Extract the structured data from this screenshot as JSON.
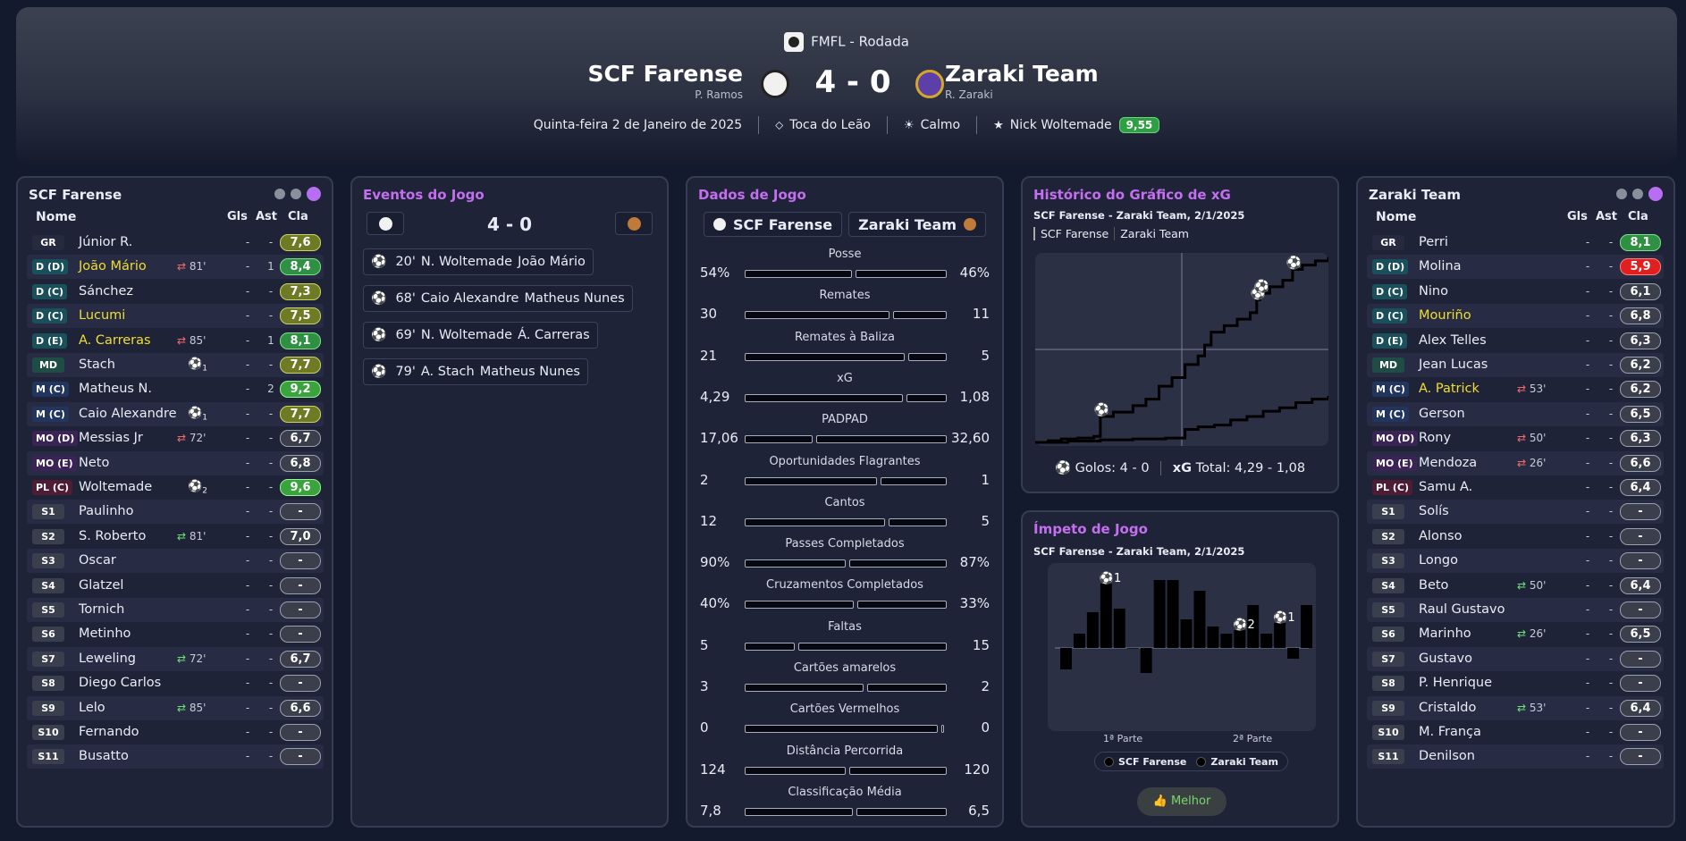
{
  "header": {
    "competition": "FMFL - Rodada",
    "home_team": "SCF Farense",
    "home_coach": "P. Ramos",
    "away_team": "Zaraki Team",
    "away_coach": "R. Zaraki",
    "score": "4 - 0",
    "date": "Quinta-feira 2 de Janeiro de 2025",
    "stadium": "Toca do Leão",
    "weather": "Calmo",
    "motm_name": "Nick Woltemade",
    "motm_rating": "9,55"
  },
  "colors": {
    "accent": "#c46ef0",
    "home_badge": "#f1f1f1",
    "away_badge": "#5d3fa8"
  },
  "left_panel": {
    "title": "SCF Farense",
    "col_name": "Nome",
    "col_gls": "Gls",
    "col_ast": "Ast",
    "col_cla": "Cla",
    "players": [
      {
        "pos": "GR",
        "type": "gr",
        "name": "Júnior R.",
        "sub": "",
        "gls": "-",
        "ast": "-",
        "rating": "7,6",
        "rclass": "r-olive"
      },
      {
        "pos": "D (D)",
        "type": "d",
        "name": "João Mário",
        "hl": true,
        "sub": "81'",
        "subdir": "out",
        "gls": "-",
        "ast": "1",
        "rating": "8,4",
        "rclass": "r-green"
      },
      {
        "pos": "D (C)",
        "type": "d",
        "name": "Sánchez",
        "sub": "",
        "gls": "-",
        "ast": "-",
        "rating": "7,3",
        "rclass": "r-olive"
      },
      {
        "pos": "D (C)",
        "type": "d",
        "name": "Lucumi",
        "hl": true,
        "sub": "",
        "gls": "-",
        "ast": "-",
        "rating": "7,5",
        "rclass": "r-olive"
      },
      {
        "pos": "D (E)",
        "type": "d",
        "name": "A. Carreras",
        "hl": true,
        "sub": "85'",
        "subdir": "out",
        "gls": "-",
        "ast": "1",
        "rating": "8,1",
        "rclass": "r-green"
      },
      {
        "pos": "MD",
        "type": "md",
        "name": "Stach",
        "sub": "",
        "goals_icon": "1",
        "gls": "-",
        "ast": "-",
        "rating": "7,7",
        "rclass": "r-olive"
      },
      {
        "pos": "M (C)",
        "type": "m",
        "name": "Matheus N.",
        "sub": "",
        "gls": "-",
        "ast": "2",
        "rating": "9,2",
        "rclass": "r-bright"
      },
      {
        "pos": "M (C)",
        "type": "m",
        "name": "Caio Alexandre",
        "sub": "",
        "goals_icon": "1",
        "gls": "-",
        "ast": "-",
        "rating": "7,7",
        "rclass": "r-olive"
      },
      {
        "pos": "MO (D)",
        "type": "mo",
        "name": "Messias Jr",
        "sub": "72'",
        "subdir": "out",
        "gls": "-",
        "ast": "-",
        "rating": "6,7",
        "rclass": ""
      },
      {
        "pos": "MO (E)",
        "type": "mo",
        "name": "Neto",
        "sub": "",
        "gls": "-",
        "ast": "-",
        "rating": "6,8",
        "rclass": ""
      },
      {
        "pos": "PL (C)",
        "type": "pl",
        "name": "Woltemade",
        "sub": "",
        "goals_icon": "2",
        "gls": "-",
        "ast": "-",
        "rating": "9,6",
        "rclass": "r-bright"
      },
      {
        "pos": "S1",
        "type": "s",
        "name": "Paulinho",
        "sub": "",
        "gls": "-",
        "ast": "-",
        "rating": "-",
        "rclass": ""
      },
      {
        "pos": "S2",
        "type": "s",
        "name": "S. Roberto",
        "sub": "81'",
        "subdir": "in",
        "gls": "-",
        "ast": "-",
        "rating": "7,0",
        "rclass": ""
      },
      {
        "pos": "S3",
        "type": "s",
        "name": "Oscar",
        "sub": "",
        "gls": "-",
        "ast": "-",
        "rating": "-",
        "rclass": ""
      },
      {
        "pos": "S4",
        "type": "s",
        "name": "Glatzel",
        "sub": "",
        "gls": "-",
        "ast": "-",
        "rating": "-",
        "rclass": ""
      },
      {
        "pos": "S5",
        "type": "s",
        "name": "Tornich",
        "sub": "",
        "gls": "-",
        "ast": "-",
        "rating": "-",
        "rclass": ""
      },
      {
        "pos": "S6",
        "type": "s",
        "name": "Metinho",
        "sub": "",
        "gls": "-",
        "ast": "-",
        "rating": "-",
        "rclass": ""
      },
      {
        "pos": "S7",
        "type": "s",
        "name": "Leweling",
        "sub": "72'",
        "subdir": "in",
        "gls": "-",
        "ast": "-",
        "rating": "6,7",
        "rclass": ""
      },
      {
        "pos": "S8",
        "type": "s",
        "name": "Diego Carlos",
        "sub": "",
        "gls": "-",
        "ast": "-",
        "rating": "-",
        "rclass": ""
      },
      {
        "pos": "S9",
        "type": "s",
        "name": "Lelo",
        "sub": "85'",
        "subdir": "in",
        "gls": "-",
        "ast": "-",
        "rating": "6,6",
        "rclass": ""
      },
      {
        "pos": "S10",
        "type": "s",
        "name": "Fernando",
        "sub": "",
        "gls": "-",
        "ast": "-",
        "rating": "-",
        "rclass": ""
      },
      {
        "pos": "S11",
        "type": "s",
        "name": "Busatto",
        "sub": "",
        "gls": "-",
        "ast": "-",
        "rating": "-",
        "rclass": ""
      }
    ]
  },
  "right_panel": {
    "title": "Zaraki Team",
    "col_name": "Nome",
    "col_gls": "Gls",
    "col_ast": "Ast",
    "col_cla": "Cla",
    "players": [
      {
        "pos": "GR",
        "type": "gr",
        "name": "Perri",
        "sub": "",
        "gls": "-",
        "ast": "-",
        "rating": "8,1",
        "rclass": "r-green"
      },
      {
        "pos": "D (D)",
        "type": "d",
        "name": "Molina",
        "sub": "",
        "gls": "-",
        "ast": "-",
        "rating": "5,9",
        "rclass": "r-red"
      },
      {
        "pos": "D (C)",
        "type": "d",
        "name": "Nino",
        "sub": "",
        "gls": "-",
        "ast": "-",
        "rating": "6,1",
        "rclass": ""
      },
      {
        "pos": "D (C)",
        "type": "d",
        "name": "Mouriño",
        "hl": true,
        "sub": "",
        "gls": "-",
        "ast": "-",
        "rating": "6,8",
        "rclass": ""
      },
      {
        "pos": "D (E)",
        "type": "d",
        "name": "Alex Telles",
        "sub": "",
        "gls": "-",
        "ast": "-",
        "rating": "6,3",
        "rclass": ""
      },
      {
        "pos": "MD",
        "type": "md",
        "name": "Jean Lucas",
        "sub": "",
        "gls": "-",
        "ast": "-",
        "rating": "6,2",
        "rclass": ""
      },
      {
        "pos": "M (C)",
        "type": "m",
        "name": "A. Patrick",
        "hl": true,
        "sub": "53'",
        "subdir": "out",
        "gls": "-",
        "ast": "-",
        "rating": "6,2",
        "rclass": ""
      },
      {
        "pos": "M (C)",
        "type": "m",
        "name": "Gerson",
        "sub": "",
        "gls": "-",
        "ast": "-",
        "rating": "6,5",
        "rclass": ""
      },
      {
        "pos": "MO (D)",
        "type": "mo",
        "name": "Rony",
        "sub": "50'",
        "subdir": "out",
        "gls": "-",
        "ast": "-",
        "rating": "6,3",
        "rclass": ""
      },
      {
        "pos": "MO (E)",
        "type": "mo",
        "name": "Mendoza",
        "sub": "26'",
        "subdir": "out",
        "gls": "-",
        "ast": "-",
        "rating": "6,6",
        "rclass": ""
      },
      {
        "pos": "PL (C)",
        "type": "pl",
        "name": "Samu A.",
        "sub": "",
        "gls": "-",
        "ast": "-",
        "rating": "6,4",
        "rclass": ""
      },
      {
        "pos": "S1",
        "type": "s",
        "name": "Solís",
        "sub": "",
        "gls": "-",
        "ast": "-",
        "rating": "-",
        "rclass": ""
      },
      {
        "pos": "S2",
        "type": "s",
        "name": "Alonso",
        "sub": "",
        "gls": "-",
        "ast": "-",
        "rating": "-",
        "rclass": ""
      },
      {
        "pos": "S3",
        "type": "s",
        "name": "Longo",
        "sub": "",
        "gls": "-",
        "ast": "-",
        "rating": "-",
        "rclass": ""
      },
      {
        "pos": "S4",
        "type": "s",
        "name": "Beto",
        "sub": "50'",
        "subdir": "in",
        "gls": "-",
        "ast": "-",
        "rating": "6,4",
        "rclass": ""
      },
      {
        "pos": "S5",
        "type": "s",
        "name": "Raul Gustavo",
        "sub": "",
        "gls": "-",
        "ast": "-",
        "rating": "-",
        "rclass": ""
      },
      {
        "pos": "S6",
        "type": "s",
        "name": "Marinho",
        "sub": "26'",
        "subdir": "in",
        "gls": "-",
        "ast": "-",
        "rating": "6,5",
        "rclass": ""
      },
      {
        "pos": "S7",
        "type": "s",
        "name": "Gustavo",
        "sub": "",
        "gls": "-",
        "ast": "-",
        "rating": "-",
        "rclass": ""
      },
      {
        "pos": "S8",
        "type": "s",
        "name": "P. Henrique",
        "sub": "",
        "gls": "-",
        "ast": "-",
        "rating": "-",
        "rclass": ""
      },
      {
        "pos": "S9",
        "type": "s",
        "name": "Cristaldo",
        "sub": "53'",
        "subdir": "in",
        "gls": "-",
        "ast": "-",
        "rating": "6,4",
        "rclass": ""
      },
      {
        "pos": "S10",
        "type": "s",
        "name": "M. França",
        "sub": "",
        "gls": "-",
        "ast": "-",
        "rating": "-",
        "rclass": ""
      },
      {
        "pos": "S11",
        "type": "s",
        "name": "Denilson",
        "sub": "",
        "gls": "-",
        "ast": "-",
        "rating": "-",
        "rclass": ""
      }
    ]
  },
  "events": {
    "title": "Eventos do Jogo",
    "score": "4 - 0",
    "items": [
      {
        "minute": "20'",
        "scorer": "N. Woltemade",
        "assist": "João Mário"
      },
      {
        "minute": "68'",
        "scorer": "Caio Alexandre",
        "assist": "Matheus Nunes"
      },
      {
        "minute": "69'",
        "scorer": "N. Woltemade",
        "assist": "Á. Carreras"
      },
      {
        "minute": "79'",
        "scorer": "A. Stach",
        "assist": "Matheus Nunes"
      }
    ]
  },
  "stats": {
    "title": "Dados de Jogo",
    "home_tab": "SCF Farense",
    "away_tab": "Zaraki Team",
    "rows": [
      {
        "label": "Posse",
        "home": "54%",
        "away": "46%",
        "h": 54,
        "a": 46
      },
      {
        "label": "Remates",
        "home": "30",
        "away": "11",
        "h": 30,
        "a": 11
      },
      {
        "label": "Remates à Baliza",
        "home": "21",
        "away": "5",
        "h": 21,
        "a": 5
      },
      {
        "label": "xG",
        "home": "4,29",
        "away": "1,08",
        "h": 4.29,
        "a": 1.08
      },
      {
        "label": "PADPAD",
        "home": "17,06",
        "away": "32,60",
        "h": 17.06,
        "a": 32.6
      },
      {
        "label": "Oportunidades Flagrantes",
        "home": "2",
        "away": "1",
        "h": 2,
        "a": 1
      },
      {
        "label": "Cantos",
        "home": "12",
        "away": "5",
        "h": 12,
        "a": 5
      },
      {
        "label": "Passes Completados",
        "home": "90%",
        "away": "87%",
        "h": 90,
        "a": 87
      },
      {
        "label": "Cruzamentos Completados",
        "home": "40%",
        "away": "33%",
        "h": 40,
        "a": 33
      },
      {
        "label": "Faltas",
        "home": "5",
        "away": "15",
        "h": 5,
        "a": 15
      },
      {
        "label": "Cartões amarelos",
        "home": "3",
        "away": "2",
        "h": 3,
        "a": 2
      },
      {
        "label": "Cartões Vermelhos",
        "home": "0",
        "away": "0",
        "h": 0,
        "a": 0
      },
      {
        "label": "Distância Percorrida",
        "home": "124",
        "away": "120",
        "h": 124,
        "a": 120
      },
      {
        "label": "Classificação Média",
        "home": "7,8",
        "away": "6,5",
        "h": 7.8,
        "a": 6.5
      }
    ]
  },
  "xg_panel": {
    "title": "Histórico do Gráfico de xG",
    "subtitle": "SCF Farense - Zaraki Team, 2/1/2025",
    "tab_home": "SCF Farense",
    "tab_away": "Zaraki Team",
    "goals_label": "Golos:",
    "goals_value": "4 - 0",
    "total_label": "Total:",
    "total_value": "4,29  - 1,08",
    "xg_tag": "xG"
  },
  "momentum_panel": {
    "title": "Ímpeto de Jogo",
    "subtitle": "SCF Farense - Zaraki Team, 2/1/2025",
    "half1": "1ª Parte",
    "half2": "2ª Parte",
    "legend_home": "SCF Farense",
    "legend_away": "Zaraki Team",
    "best_button": "Melhor"
  },
  "chart_data": [
    {
      "type": "line",
      "series": [
        {
          "x": [
            0,
            4,
            8,
            13,
            18,
            20,
            24,
            30,
            34,
            38,
            42,
            46,
            50,
            52,
            54,
            58,
            62,
            66,
            68,
            69,
            72,
            76,
            79,
            82,
            86,
            90
          ],
          "y": [
            0,
            0.04,
            0.08,
            0.1,
            0.14,
            0.6,
            0.7,
            0.85,
            1.0,
            1.3,
            1.5,
            1.8,
            2.0,
            2.25,
            2.55,
            2.7,
            2.85,
            3.0,
            3.3,
            3.45,
            3.6,
            3.75,
            4.0,
            4.1,
            4.2,
            4.29
          ]
        },
        {
          "x": [
            0,
            10,
            20,
            30,
            40,
            46,
            50,
            55,
            60,
            65,
            70,
            75,
            80,
            85,
            90
          ],
          "y": [
            0,
            0.03,
            0.06,
            0.08,
            0.1,
            0.3,
            0.36,
            0.4,
            0.52,
            0.6,
            0.72,
            0.8,
            0.92,
            1.0,
            1.08
          ]
        }
      ],
      "goals_minutes": [
        20,
        68,
        69,
        79
      ],
      "xlim": [
        0,
        90
      ],
      "ylim": [
        0,
        4.3
      ]
    },
    {
      "type": "bar",
      "values": [
        -0.3,
        0.2,
        0.5,
        0.9,
        0.55,
        0.0,
        -0.35,
        0.95,
        0.95,
        0.4,
        0.8,
        0.3,
        0.2,
        0.25,
        0.6,
        0.2,
        0.35,
        -0.15,
        0.6
      ],
      "goal_markers": [
        {
          "bar": 3,
          "count": "1"
        },
        {
          "bar": 13,
          "count": "2"
        },
        {
          "bar": 16,
          "count": "1"
        }
      ],
      "ylim": [
        -1,
        1
      ]
    }
  ]
}
